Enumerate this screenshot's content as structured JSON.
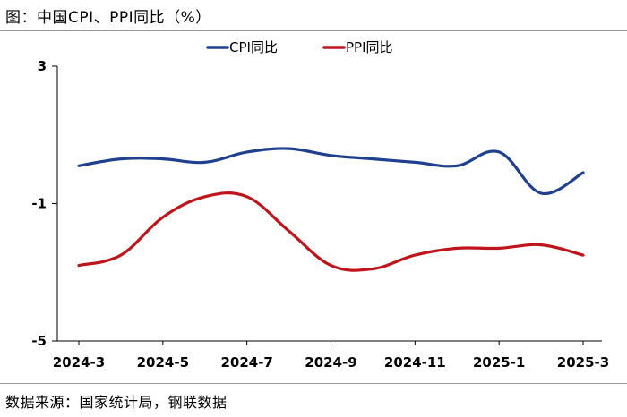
{
  "header": {
    "title": "图：中国CPI、PPI同比（%）"
  },
  "footer": {
    "source": "数据来源：国家统计局，钢联数据"
  },
  "chart_data": {
    "type": "line",
    "title": "图：中国CPI、PPI同比（%）",
    "xlabel": "",
    "ylabel": "",
    "x": [
      "2024-3",
      "2024-4",
      "2024-5",
      "2024-6",
      "2024-7",
      "2024-8",
      "2024-9",
      "2024-10",
      "2024-11",
      "2024-12",
      "2025-1",
      "2025-2",
      "2025-3"
    ],
    "x_tick_labels": [
      "2024-3",
      "2024-5",
      "2024-7",
      "2024-9",
      "2024-11",
      "2025-1",
      "2025-3"
    ],
    "ylim": [
      -5,
      3
    ],
    "y_ticks": [
      "3",
      "-1",
      "-5"
    ],
    "y_tick_values": [
      3,
      -1,
      -5
    ],
    "grid": false,
    "legend_position": "top-center",
    "series": [
      {
        "name": "CPI同比",
        "color": "#1f3f8f",
        "values": [
          0.1,
          0.3,
          0.3,
          0.2,
          0.5,
          0.6,
          0.4,
          0.3,
          0.2,
          0.1,
          0.5,
          -0.7,
          -0.1
        ]
      },
      {
        "name": "PPI同比",
        "color": "#c0141c",
        "values": [
          -2.8,
          -2.5,
          -1.4,
          -0.8,
          -0.8,
          -1.8,
          -2.8,
          -2.9,
          -2.5,
          -2.3,
          -2.3,
          -2.2,
          -2.5
        ]
      }
    ]
  }
}
